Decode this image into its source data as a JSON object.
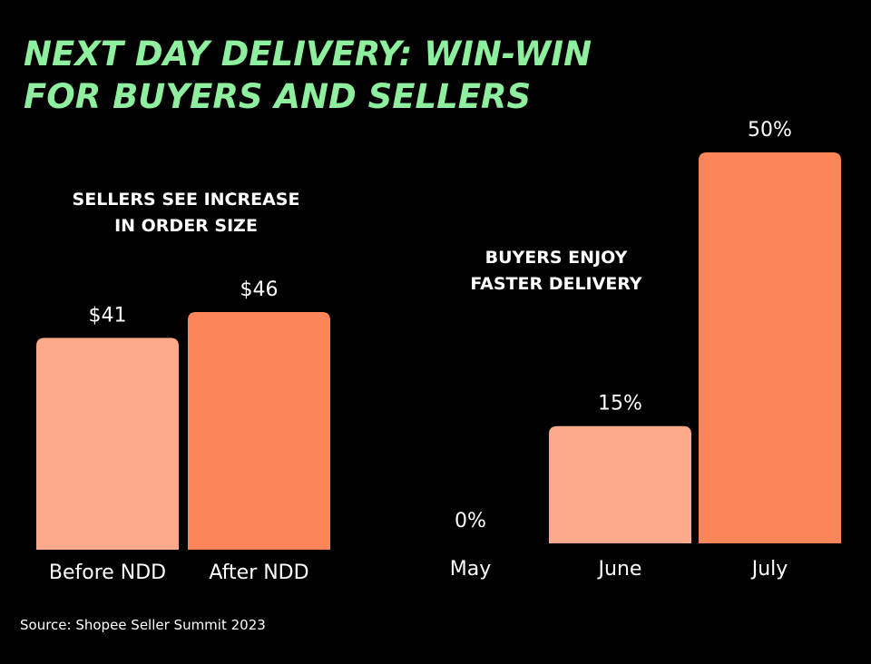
{
  "title_lines": [
    "NEXT DAY DELIVERY: WIN-WIN",
    "FOR BUYERS AND SELLERS"
  ],
  "source": "Source: Shopee Seller Summit 2023",
  "colors": {
    "background": "#000000",
    "title": "#8ef09e",
    "bar_light": "#fcaa8a",
    "bar_dark": "#fd8659",
    "text": "#ffffff"
  },
  "chart_data": [
    {
      "type": "bar",
      "title_lines": [
        "SELLERS SEE INCREASE",
        "IN ORDER SIZE"
      ],
      "categories": [
        "Before NDD",
        "After NDD"
      ],
      "values": [
        41,
        46
      ],
      "value_labels": [
        "$41",
        "$46"
      ],
      "bar_colors": [
        "#fcaa8a",
        "#fd8659"
      ],
      "ylim": [
        0,
        46
      ]
    },
    {
      "type": "bar",
      "title_lines": [
        "BUYERS ENJOY",
        "FASTER DELIVERY"
      ],
      "categories": [
        "May",
        "June",
        "July"
      ],
      "values": [
        0,
        15,
        50
      ],
      "value_labels": [
        "0%",
        "15%",
        "50%"
      ],
      "bar_colors": [
        "#fcaa8a",
        "#fcaa8a",
        "#fd8659"
      ],
      "ylim": [
        0,
        50
      ]
    }
  ]
}
